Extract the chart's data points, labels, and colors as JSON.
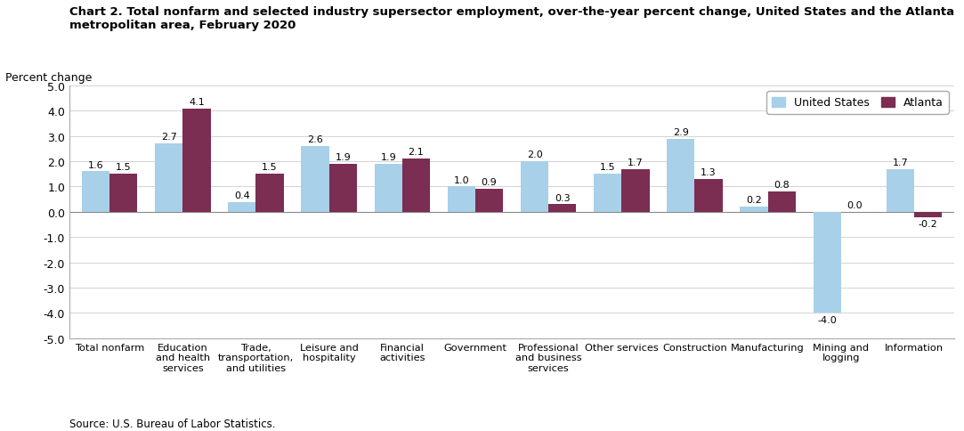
{
  "title_line1": "Chart 2. Total nonfarm and selected industry supersector employment, over-the-year percent change, United States and the Atlanta",
  "title_line2": "metropolitan area, February 2020",
  "ylabel": "Percent change",
  "source": "Source: U.S. Bureau of Labor Statistics.",
  "categories": [
    "Total nonfarm",
    "Education\nand health\nservices",
    "Trade,\ntransportation,\nand utilities",
    "Leisure and\nhospitality",
    "Financial\nactivities",
    "Government",
    "Professional\nand business\nservices",
    "Other services",
    "Construction",
    "Manufacturing",
    "Mining and\nlogging",
    "Information"
  ],
  "us_values": [
    1.6,
    2.7,
    0.4,
    2.6,
    1.9,
    1.0,
    2.0,
    1.5,
    2.9,
    0.2,
    -4.0,
    1.7
  ],
  "atlanta_values": [
    1.5,
    4.1,
    1.5,
    1.9,
    2.1,
    0.9,
    0.3,
    1.7,
    1.3,
    0.8,
    0.0,
    -0.2
  ],
  "us_color": "#a8d0e8",
  "atlanta_color": "#7B2D52",
  "ylim": [
    -5.0,
    5.0
  ],
  "yticks": [
    -5.0,
    -4.0,
    -3.0,
    -2.0,
    -1.0,
    0.0,
    1.0,
    2.0,
    3.0,
    4.0,
    5.0
  ],
  "legend_us": "United States",
  "legend_atlanta": "Atlanta",
  "bar_width": 0.38
}
